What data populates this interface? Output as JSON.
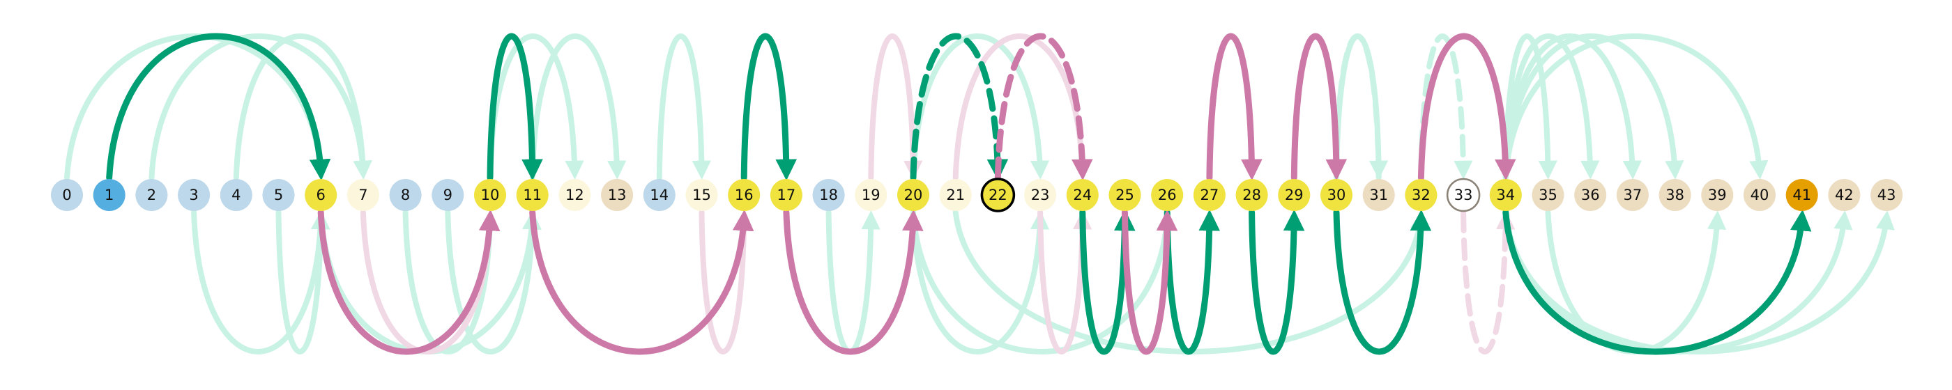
{
  "colors": {
    "blue_light": "#bcd8ea",
    "blue_bold": "#55aee0",
    "yellow": "#f0e33f",
    "cream": "#fbf6dc",
    "tan": "#ecdcc0",
    "orange": "#e69f00",
    "green_bold": "#009e73",
    "green_faint": "#c8f2e4",
    "pink_bold": "#cc79a7",
    "pink_faint": "#f0d8e4",
    "outline": "#000000",
    "gray_outline": "#8a8276"
  },
  "nodes": [
    {
      "label": "0",
      "fill": "blue_light"
    },
    {
      "label": "1",
      "fill": "blue_bold"
    },
    {
      "label": "2",
      "fill": "blue_light"
    },
    {
      "label": "3",
      "fill": "blue_light"
    },
    {
      "label": "4",
      "fill": "blue_light"
    },
    {
      "label": "5",
      "fill": "blue_light"
    },
    {
      "label": "6",
      "fill": "yellow"
    },
    {
      "label": "7",
      "fill": "cream"
    },
    {
      "label": "8",
      "fill": "blue_light"
    },
    {
      "label": "9",
      "fill": "blue_light"
    },
    {
      "label": "10",
      "fill": "yellow"
    },
    {
      "label": "11",
      "fill": "yellow"
    },
    {
      "label": "12",
      "fill": "cream"
    },
    {
      "label": "13",
      "fill": "tan"
    },
    {
      "label": "14",
      "fill": "blue_light"
    },
    {
      "label": "15",
      "fill": "cream"
    },
    {
      "label": "16",
      "fill": "yellow"
    },
    {
      "label": "17",
      "fill": "yellow"
    },
    {
      "label": "18",
      "fill": "blue_light"
    },
    {
      "label": "19",
      "fill": "cream"
    },
    {
      "label": "20",
      "fill": "yellow"
    },
    {
      "label": "21",
      "fill": "cream"
    },
    {
      "label": "22",
      "fill": "yellow",
      "outline": "outline"
    },
    {
      "label": "23",
      "fill": "cream"
    },
    {
      "label": "24",
      "fill": "yellow"
    },
    {
      "label": "25",
      "fill": "yellow"
    },
    {
      "label": "26",
      "fill": "yellow"
    },
    {
      "label": "27",
      "fill": "yellow"
    },
    {
      "label": "28",
      "fill": "yellow"
    },
    {
      "label": "29",
      "fill": "yellow"
    },
    {
      "label": "30",
      "fill": "yellow"
    },
    {
      "label": "31",
      "fill": "tan"
    },
    {
      "label": "32",
      "fill": "yellow"
    },
    {
      "label": "33",
      "fill": "white",
      "outline": "gray_outline"
    },
    {
      "label": "34",
      "fill": "yellow"
    },
    {
      "label": "35",
      "fill": "tan"
    },
    {
      "label": "36",
      "fill": "tan"
    },
    {
      "label": "37",
      "fill": "tan"
    },
    {
      "label": "38",
      "fill": "tan"
    },
    {
      "label": "39",
      "fill": "tan"
    },
    {
      "label": "40",
      "fill": "tan"
    },
    {
      "label": "41",
      "fill": "orange"
    },
    {
      "label": "42",
      "fill": "tan"
    },
    {
      "label": "43",
      "fill": "tan"
    }
  ],
  "arcs": [
    {
      "from": 0,
      "to": 6,
      "side": "above",
      "color": "green_faint"
    },
    {
      "from": 2,
      "to": 7,
      "side": "above",
      "color": "green_faint"
    },
    {
      "from": 4,
      "to": 7,
      "side": "above",
      "color": "green_faint"
    },
    {
      "from": 3,
      "to": 6,
      "side": "below",
      "color": "green_faint"
    },
    {
      "from": 5,
      "to": 6,
      "side": "below",
      "color": "green_faint"
    },
    {
      "from": 6,
      "to": 11,
      "side": "below",
      "color": "green_faint"
    },
    {
      "from": 8,
      "to": 10,
      "side": "below",
      "color": "green_faint"
    },
    {
      "from": 9,
      "to": 11,
      "side": "below",
      "color": "green_faint"
    },
    {
      "from": 10,
      "to": 12,
      "side": "above",
      "color": "green_faint"
    },
    {
      "from": 11,
      "to": 13,
      "side": "above",
      "color": "green_faint"
    },
    {
      "from": 14,
      "to": 15,
      "side": "above",
      "color": "green_faint"
    },
    {
      "from": 18,
      "to": 19,
      "side": "below",
      "color": "green_faint"
    },
    {
      "from": 20,
      "to": 23,
      "side": "above",
      "color": "green_faint"
    },
    {
      "from": 20,
      "to": 23,
      "side": "below",
      "color": "green_faint"
    },
    {
      "from": 20,
      "to": 26,
      "side": "below",
      "color": "green_faint"
    },
    {
      "from": 21,
      "to": 32,
      "side": "below",
      "color": "green_faint"
    },
    {
      "from": 30,
      "to": 31,
      "side": "above",
      "color": "green_faint"
    },
    {
      "from": 31,
      "to": 30,
      "side": "above",
      "color": "green_faint",
      "dashed": true
    },
    {
      "from": 32,
      "to": 33,
      "side": "above",
      "color": "green_faint",
      "dashed": true
    },
    {
      "from": 34,
      "to": 35,
      "side": "above",
      "color": "green_faint"
    },
    {
      "from": 34,
      "to": 36,
      "side": "above",
      "color": "green_faint"
    },
    {
      "from": 34,
      "to": 37,
      "side": "above",
      "color": "green_faint"
    },
    {
      "from": 34,
      "to": 38,
      "side": "above",
      "color": "green_faint"
    },
    {
      "from": 34,
      "to": 40,
      "side": "above",
      "color": "green_faint"
    },
    {
      "from": 34,
      "to": 42,
      "side": "below",
      "color": "green_faint"
    },
    {
      "from": 34,
      "to": 43,
      "side": "below",
      "color": "green_faint"
    },
    {
      "from": 35,
      "to": 39,
      "side": "below",
      "color": "green_faint"
    },
    {
      "from": 7,
      "to": 10,
      "side": "below",
      "color": "pink_faint"
    },
    {
      "from": 11,
      "to": 16,
      "side": "below",
      "color": "pink_faint"
    },
    {
      "from": 15,
      "to": 16,
      "side": "below",
      "color": "pink_faint"
    },
    {
      "from": 19,
      "to": 20,
      "side": "above",
      "color": "pink_faint"
    },
    {
      "from": 21,
      "to": 24,
      "side": "above",
      "color": "pink_faint"
    },
    {
      "from": 23,
      "to": 24,
      "side": "below",
      "color": "pink_faint"
    },
    {
      "from": 33,
      "to": 34,
      "side": "below",
      "color": "pink_faint",
      "dashed": true
    },
    {
      "from": 1,
      "to": 6,
      "side": "above",
      "color": "green_bold"
    },
    {
      "from": 10,
      "to": 11,
      "side": "above",
      "color": "green_bold"
    },
    {
      "from": 16,
      "to": 17,
      "side": "above",
      "color": "green_bold"
    },
    {
      "from": 20,
      "to": 22,
      "side": "above",
      "color": "green_bold",
      "dashed": true
    },
    {
      "from": 24,
      "to": 25,
      "side": "below",
      "color": "green_bold"
    },
    {
      "from": 26,
      "to": 27,
      "side": "below",
      "color": "green_bold"
    },
    {
      "from": 28,
      "to": 29,
      "side": "below",
      "color": "green_bold"
    },
    {
      "from": 30,
      "to": 32,
      "side": "below",
      "color": "green_bold"
    },
    {
      "from": 34,
      "to": 41,
      "side": "below",
      "color": "green_bold"
    },
    {
      "from": 6,
      "to": 10,
      "side": "below",
      "color": "pink_bold"
    },
    {
      "from": 11,
      "to": 16,
      "side": "below",
      "color": "pink_bold"
    },
    {
      "from": 17,
      "to": 20,
      "side": "below",
      "color": "pink_bold"
    },
    {
      "from": 22,
      "to": 24,
      "side": "above",
      "color": "pink_bold",
      "dashed": true
    },
    {
      "from": 25,
      "to": 26,
      "side": "below",
      "color": "pink_bold"
    },
    {
      "from": 27,
      "to": 28,
      "side": "above",
      "color": "pink_bold"
    },
    {
      "from": 29,
      "to": 30,
      "side": "above",
      "color": "pink_bold"
    },
    {
      "from": 32,
      "to": 34,
      "side": "above",
      "color": "pink_bold"
    }
  ]
}
